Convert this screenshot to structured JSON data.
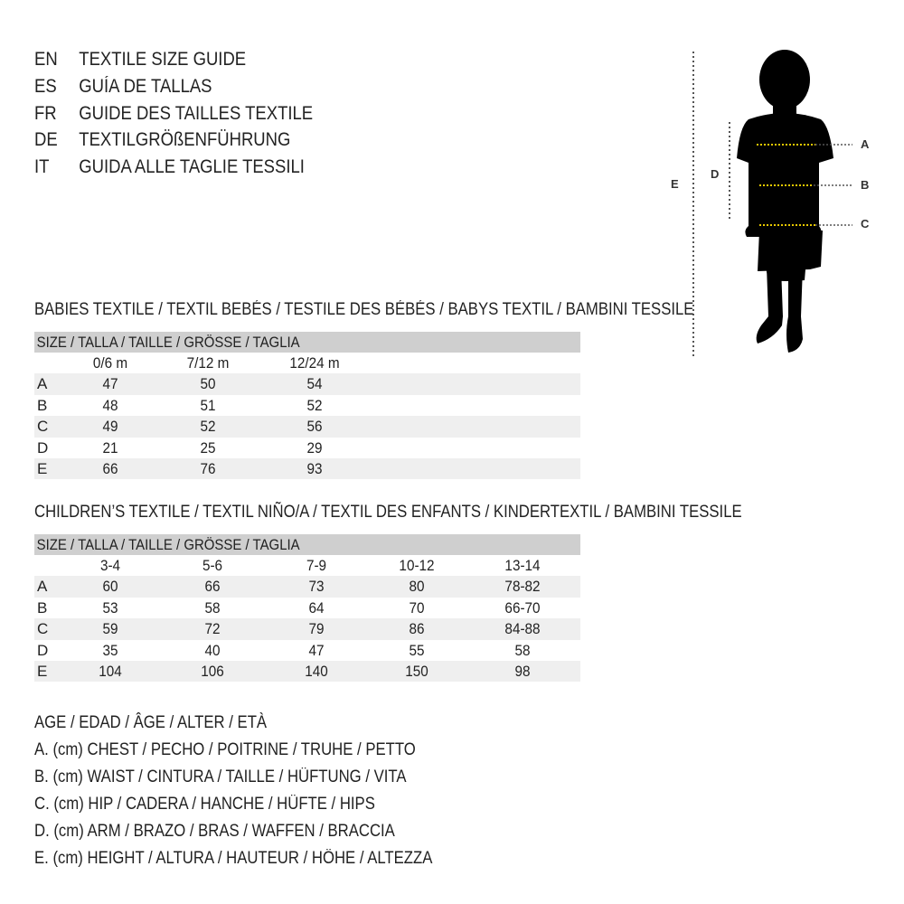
{
  "titles": [
    {
      "code": "EN",
      "text": "TEXTILE SIZE GUIDE"
    },
    {
      "code": "ES",
      "text": "GUÍA DE TALLAS"
    },
    {
      "code": "FR",
      "text": "GUIDE DES TAILLES TEXTILE"
    },
    {
      "code": "DE",
      "text": "TEXTILGRÖßENFÜHRUNG"
    },
    {
      "code": "IT",
      "text": "GUIDA ALLE TAGLIE TESSILI"
    }
  ],
  "figure": {
    "labels": {
      "a": "A",
      "b": "B",
      "c": "C",
      "d": "D",
      "e": "E"
    },
    "measure_color": "#e8c800"
  },
  "babies": {
    "title": "BABIES TEXTILE / TEXTIL BEBÉS / TESTILE DES BÉBÉS / BABYS TEXTIL / BAMBINI TESSILE",
    "size_header": "SIZE / TALLA / TAILLE / GRÖSSE / TAGLIA",
    "columns": [
      "0/6 m",
      "7/12 m",
      "12/24 m"
    ],
    "rows": [
      {
        "label": "A",
        "values": [
          "47",
          "50",
          "54"
        ]
      },
      {
        "label": "B",
        "values": [
          "48",
          "51",
          "52"
        ]
      },
      {
        "label": "C",
        "values": [
          "49",
          "52",
          "56"
        ]
      },
      {
        "label": "D",
        "values": [
          "21",
          "25",
          "29"
        ]
      },
      {
        "label": "E",
        "values": [
          "66",
          "76",
          "93"
        ]
      }
    ]
  },
  "children": {
    "title": "CHILDREN’S TEXTILE / TEXTIL NIÑO/A / TEXTIL DES ENFANTS / KINDERTEXTIL / BAMBINI TESSILE",
    "size_header": "SIZE / TALLA / TAILLE / GRÖSSE / TAGLIA",
    "columns": [
      "3-4",
      "5-6",
      "7-9",
      "10-12",
      "13-14"
    ],
    "rows": [
      {
        "label": "A",
        "values": [
          "60",
          "66",
          "73",
          "80",
          "78-82"
        ]
      },
      {
        "label": "B",
        "values": [
          "53",
          "58",
          "64",
          "70",
          "66-70"
        ]
      },
      {
        "label": "C",
        "values": [
          "59",
          "72",
          "79",
          "86",
          "84-88"
        ]
      },
      {
        "label": "D",
        "values": [
          "35",
          "40",
          "47",
          "55",
          "58"
        ]
      },
      {
        "label": "E",
        "values": [
          "104",
          "106",
          "140",
          "150",
          "98"
        ]
      }
    ]
  },
  "legend": [
    "AGE / EDAD / ÂGE / ALTER / ETÀ",
    "A. (cm) CHEST / PECHO / POITRINE / TRUHE / PETTO",
    "B. (cm) WAIST / CINTURA / TAILLE / HÜFTUNG / VITA",
    "C. (cm) HIP / CADERA / HANCHE / HÜFTE / HIPS",
    "D. (cm) ARM / BRAZO / BRAS / WAFFEN / BRACCIA",
    "E. (cm) HEIGHT / ALTURA / HAUTEUR / HÖHE / ALTEZZA"
  ]
}
